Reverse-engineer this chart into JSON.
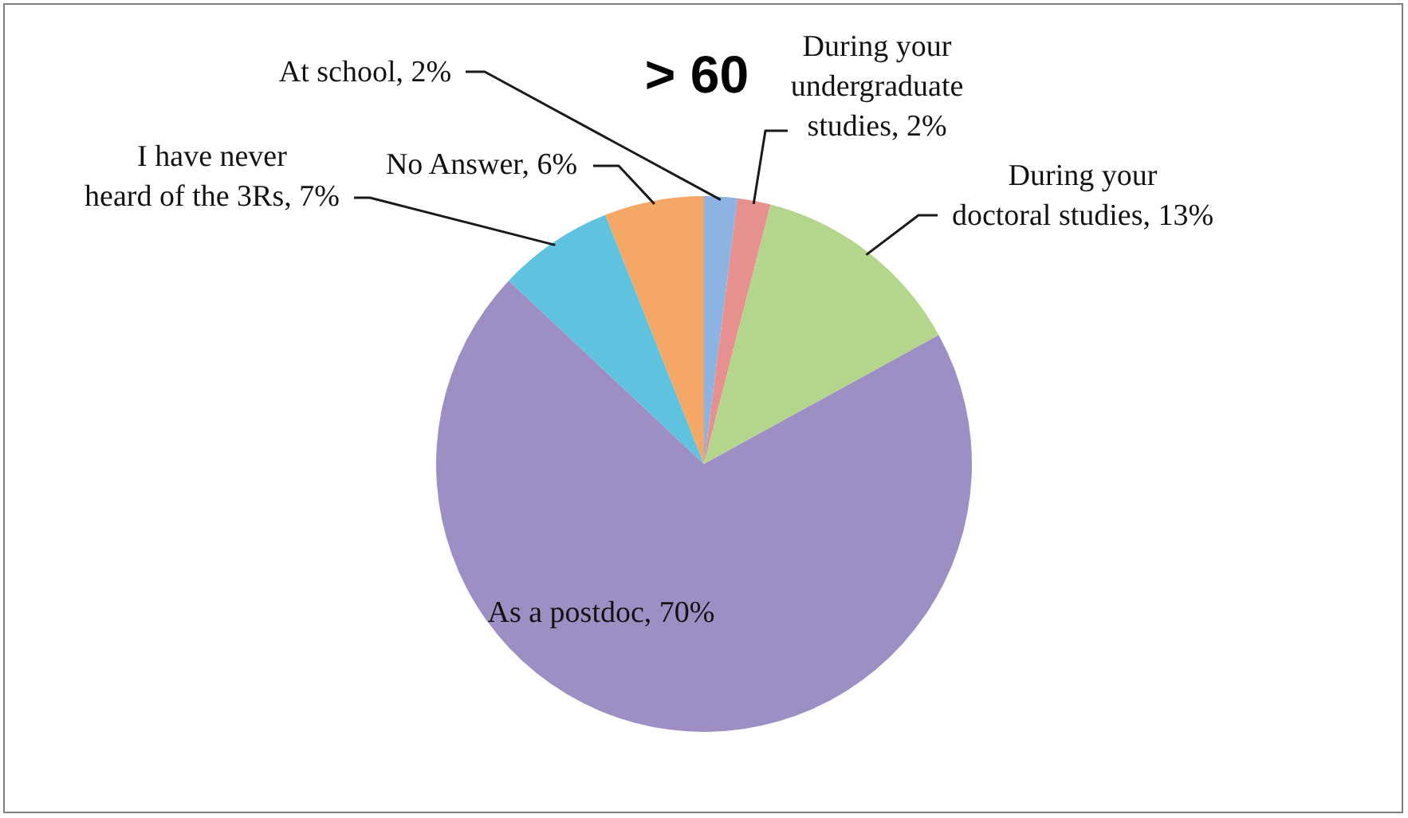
{
  "chart_data": {
    "type": "pie",
    "title": "> 60",
    "categories": [
      "At school",
      "During your undergraduate studies",
      "During your doctoral studies",
      "As a postdoc",
      "I have never heard of the 3Rs",
      "No Answer"
    ],
    "values": [
      2,
      2,
      13,
      70,
      7,
      6
    ],
    "colors": [
      "#8db3e2",
      "#e6908f",
      "#b3d58c",
      "#9d8ec4",
      "#5fc3df",
      "#f5a766"
    ],
    "value_labels": [
      "2%",
      "2%",
      "13%",
      "70%",
      "7%",
      "6%"
    ],
    "legend": false
  }
}
